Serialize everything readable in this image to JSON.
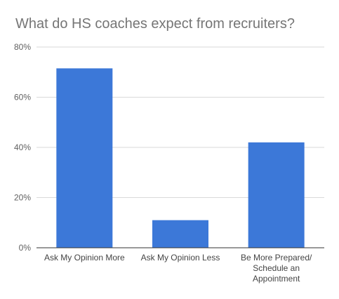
{
  "chart_data": {
    "type": "bar",
    "title": "What do HS coaches expect from recruiters?",
    "xlabel": "",
    "ylabel": "",
    "categories": [
      [
        "Ask My Opinion More"
      ],
      [
        "Ask My Opinion Less"
      ],
      [
        "Be More Prepared/",
        "Schedule an",
        "Appointment"
      ]
    ],
    "values": [
      71.5,
      11,
      42
    ],
    "ylim": [
      0,
      80
    ],
    "yticks": [
      0,
      20,
      40,
      60,
      80
    ],
    "ytick_labels": [
      "0%",
      "20%",
      "40%",
      "60%",
      "80%"
    ],
    "bar_color": "#3c78d8",
    "grid": true,
    "legend": "none"
  }
}
